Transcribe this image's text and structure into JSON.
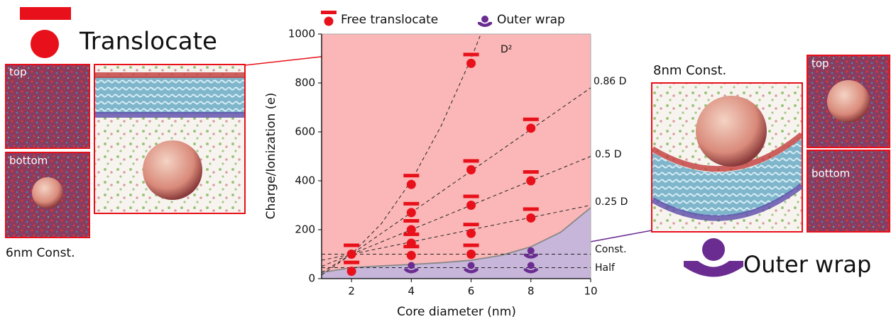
{
  "chart_data": {
    "type": "scatter",
    "xlabel": "Core diameter (nm)",
    "ylabel": "Charge/Ionization  (e)",
    "xlim": [
      1,
      10
    ],
    "ylim": [
      0,
      1000
    ],
    "xticks": [
      2,
      4,
      6,
      8,
      10
    ],
    "yticks": [
      0,
      200,
      400,
      600,
      800,
      1000
    ],
    "series": [
      {
        "name": "Free translocate",
        "color": "#e8101a",
        "x": [
          2,
          2,
          4,
          4,
          4,
          4,
          4,
          6,
          6,
          6,
          6,
          6,
          8,
          8,
          8
        ],
        "values": [
          100,
          30,
          385,
          270,
          200,
          145,
          95,
          880,
          445,
          300,
          185,
          100,
          615,
          400,
          248
        ]
      },
      {
        "name": "Outer wrap",
        "color": "#6a2c91",
        "x": [
          4,
          6,
          8,
          8
        ],
        "values": [
          45,
          45,
          45,
          105
        ]
      }
    ],
    "fit_lines": [
      {
        "label": "D²",
        "x": [
          1,
          2,
          3,
          4,
          5,
          6,
          6.3
        ],
        "values": [
          25,
          100,
          225,
          400,
          625,
          900,
          992
        ]
      },
      {
        "label": "0.86 D",
        "x": [
          1,
          10
        ],
        "values": [
          15,
          780
        ]
      },
      {
        "label": "0.5 D",
        "x": [
          1,
          10
        ],
        "values": [
          50,
          500
        ]
      },
      {
        "label": "0.25 D",
        "x": [
          1,
          10
        ],
        "values": [
          75,
          300
        ]
      },
      {
        "label": "Const.",
        "x": [
          1,
          10
        ],
        "values": [
          100,
          100
        ]
      },
      {
        "label": "Half",
        "x": [
          1,
          10
        ],
        "values": [
          45,
          45
        ]
      }
    ],
    "boundary": {
      "x": [
        1,
        2,
        3,
        4,
        5,
        6,
        7,
        8,
        9,
        10
      ],
      "values": [
        25,
        45,
        52,
        58,
        65,
        75,
        95,
        130,
        190,
        290
      ]
    },
    "region_colors": {
      "above": "#fbb7b7",
      "below": "#c8b6da"
    }
  },
  "figure": {
    "left_label": "Translocate",
    "left_panels": [
      "top",
      "bottom"
    ],
    "left_caption": "6nm  Const.",
    "right_label": "Outer wrap",
    "right_panels": [
      "top",
      "bottom"
    ],
    "right_caption": "8nm  Const."
  }
}
